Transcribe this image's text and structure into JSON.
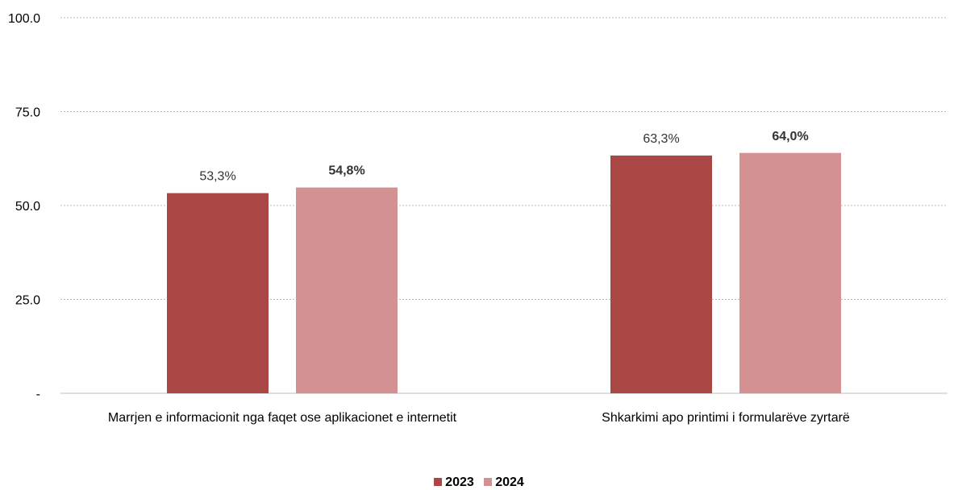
{
  "chart_data": {
    "type": "bar",
    "categories": [
      "Marrjen e informacionit nga faqet ose aplikacionet e internetit",
      "Shkarkimi apo printimi i formularëve zyrtarë"
    ],
    "series": [
      {
        "name": "2023",
        "values": [
          53.3,
          63.3
        ],
        "labels": [
          "53,3%",
          "63,3%"
        ],
        "color": "#a94744",
        "label_bold": false
      },
      {
        "name": "2024",
        "values": [
          54.8,
          64.0
        ],
        "labels": [
          "54,8%",
          "64,0%"
        ],
        "color": "#d39191",
        "label_bold": true
      }
    ],
    "ylim": [
      0,
      100
    ],
    "yticks": [
      0,
      25,
      50,
      75,
      100
    ],
    "ytick_labels": [
      "-",
      "25.0",
      "50.0",
      "75.0",
      "100.0"
    ],
    "grid": true,
    "legend_position": "bottom-center"
  }
}
